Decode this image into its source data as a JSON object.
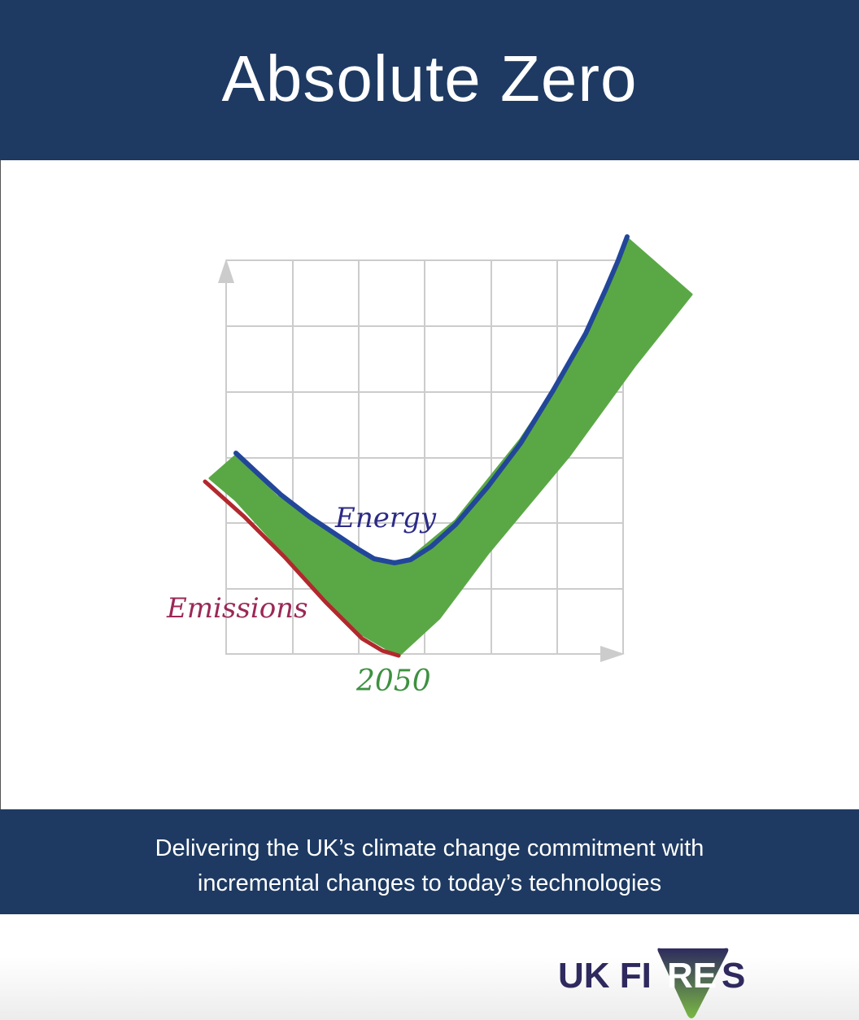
{
  "header": {
    "title": "Absolute Zero"
  },
  "illustration": {
    "labels": {
      "energy": "Energy",
      "emissions": "Emissions",
      "year": "2050"
    },
    "colors": {
      "energy": "#22469a",
      "emissions": "#b3282d",
      "fill": "#5aa845",
      "grid": "#cccccc"
    }
  },
  "subtitle": {
    "line1": "Delivering the UK’s climate change commitment with",
    "line2": "incremental changes to today’s technologies"
  },
  "logo": {
    "text": "UK FIRES"
  },
  "colors": {
    "band": "#1e3a62",
    "logo_text": "#2e2a5e"
  }
}
